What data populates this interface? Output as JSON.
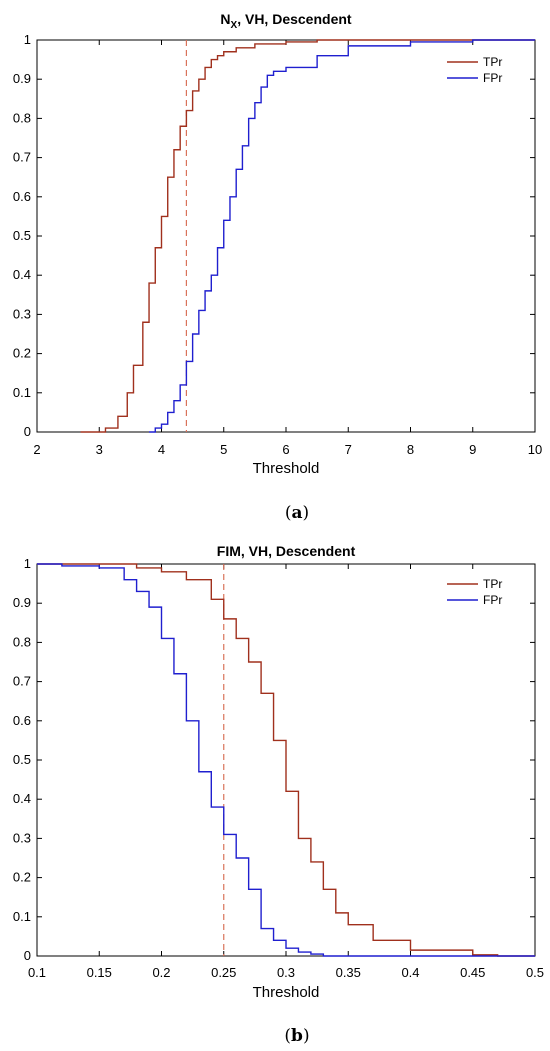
{
  "chart_data": [
    {
      "type": "line",
      "title_main": "N",
      "title_sub": "X",
      "title_rest": ", VH, Descendent",
      "xlabel": "Threshold",
      "ylabel": "",
      "xlim": [
        2,
        10
      ],
      "ylim": [
        0,
        1
      ],
      "xticks": [
        "2",
        "3",
        "4",
        "5",
        "6",
        "7",
        "8",
        "9",
        "10"
      ],
      "yticks": [
        "0",
        "0.1",
        "0.2",
        "0.3",
        "0.4",
        "0.5",
        "0.6",
        "0.7",
        "0.8",
        "0.9",
        "1"
      ],
      "threshold_line": 4.4,
      "caption_open": "(",
      "caption_letter": "a",
      "caption_close": ")",
      "series": [
        {
          "name": "TPr",
          "color": "#a0301d",
          "x": [
            2.7,
            2.9,
            3.1,
            3.3,
            3.45,
            3.55,
            3.7,
            3.8,
            3.9,
            4.0,
            4.1,
            4.2,
            4.3,
            4.4,
            4.5,
            4.6,
            4.7,
            4.8,
            4.9,
            5.0,
            5.2,
            5.5,
            6.0,
            6.5,
            7.0,
            8.0,
            9.0
          ],
          "values": [
            0.0,
            0.0,
            0.01,
            0.04,
            0.1,
            0.17,
            0.28,
            0.38,
            0.47,
            0.55,
            0.65,
            0.72,
            0.78,
            0.82,
            0.87,
            0.9,
            0.93,
            0.95,
            0.96,
            0.97,
            0.98,
            0.99,
            0.995,
            1.0,
            1.0,
            1.0,
            1.0
          ]
        },
        {
          "name": "FPr",
          "color": "#1f1fcf",
          "x": [
            3.8,
            3.9,
            4.0,
            4.1,
            4.2,
            4.3,
            4.4,
            4.5,
            4.6,
            4.7,
            4.8,
            4.9,
            5.0,
            5.1,
            5.2,
            5.3,
            5.4,
            5.5,
            5.6,
            5.7,
            5.8,
            6.0,
            6.5,
            7.0,
            8.0,
            9.0
          ],
          "values": [
            0.0,
            0.01,
            0.02,
            0.05,
            0.08,
            0.12,
            0.18,
            0.25,
            0.31,
            0.36,
            0.4,
            0.47,
            0.54,
            0.6,
            0.67,
            0.73,
            0.8,
            0.84,
            0.88,
            0.91,
            0.92,
            0.93,
            0.96,
            0.985,
            0.995,
            1.0
          ]
        }
      ],
      "legend_position": "top-right"
    },
    {
      "type": "line",
      "title_main": "FIM, VH, Descendent",
      "title_sub": "",
      "title_rest": "",
      "xlabel": "Threshold",
      "ylabel": "",
      "xlim": [
        0.1,
        0.5
      ],
      "ylim": [
        0,
        1
      ],
      "xticks": [
        "0.1",
        "0.15",
        "0.2",
        "0.25",
        "0.3",
        "0.35",
        "0.4",
        "0.45",
        "0.5"
      ],
      "yticks": [
        "0",
        "0.1",
        "0.2",
        "0.3",
        "0.4",
        "0.5",
        "0.6",
        "0.7",
        "0.8",
        "0.9",
        "1"
      ],
      "threshold_line": 0.25,
      "caption_open": "(",
      "caption_letter": "b",
      "caption_close": ")",
      "series": [
        {
          "name": "TPr",
          "color": "#a0301d",
          "x": [
            0.1,
            0.15,
            0.18,
            0.2,
            0.22,
            0.24,
            0.25,
            0.26,
            0.27,
            0.28,
            0.29,
            0.3,
            0.31,
            0.32,
            0.33,
            0.34,
            0.35,
            0.37,
            0.4,
            0.45,
            0.47
          ],
          "values": [
            1.0,
            1.0,
            0.99,
            0.98,
            0.96,
            0.91,
            0.86,
            0.81,
            0.75,
            0.67,
            0.55,
            0.42,
            0.3,
            0.24,
            0.17,
            0.11,
            0.08,
            0.04,
            0.015,
            0.003,
            0.0
          ]
        },
        {
          "name": "FPr",
          "color": "#1f1fcf",
          "x": [
            0.1,
            0.12,
            0.15,
            0.17,
            0.18,
            0.19,
            0.2,
            0.21,
            0.22,
            0.23,
            0.24,
            0.25,
            0.26,
            0.27,
            0.28,
            0.29,
            0.3,
            0.31,
            0.32,
            0.33
          ],
          "values": [
            1.0,
            0.995,
            0.99,
            0.96,
            0.93,
            0.89,
            0.81,
            0.72,
            0.6,
            0.47,
            0.38,
            0.31,
            0.25,
            0.17,
            0.07,
            0.04,
            0.02,
            0.01,
            0.005,
            0.0
          ]
        }
      ],
      "legend_position": "top-right"
    }
  ]
}
